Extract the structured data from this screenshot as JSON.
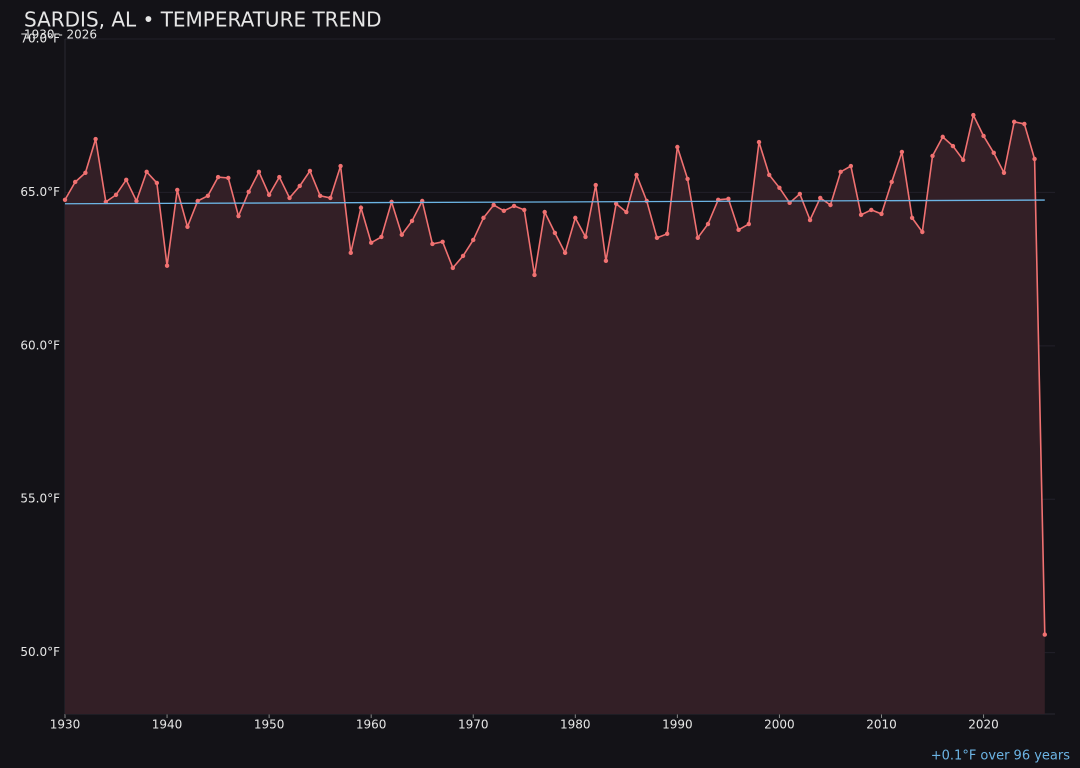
{
  "chart_data": {
    "type": "line",
    "title": "SARDIS, AL • TEMPERATURE TREND",
    "subtitle": "1930 - 2026",
    "annotation": "+0.1°F over 96 years",
    "x": [
      1930,
      1931,
      1932,
      1933,
      1934,
      1935,
      1936,
      1937,
      1938,
      1939,
      1940,
      1941,
      1942,
      1943,
      1944,
      1945,
      1946,
      1947,
      1948,
      1949,
      1950,
      1951,
      1952,
      1953,
      1954,
      1955,
      1956,
      1957,
      1958,
      1959,
      1960,
      1961,
      1962,
      1963,
      1964,
      1965,
      1966,
      1967,
      1968,
      1969,
      1970,
      1971,
      1972,
      1973,
      1974,
      1975,
      1976,
      1977,
      1978,
      1979,
      1980,
      1981,
      1982,
      1983,
      1984,
      1985,
      1986,
      1987,
      1988,
      1989,
      1990,
      1991,
      1992,
      1993,
      1994,
      1995,
      1996,
      1997,
      1998,
      1999,
      2000,
      2001,
      2002,
      2003,
      2004,
      2005,
      2006,
      2007,
      2008,
      2009,
      2010,
      2011,
      2012,
      2013,
      2014,
      2015,
      2016,
      2017,
      2018,
      2019,
      2020,
      2021,
      2022,
      2023,
      2024,
      2025,
      2026
    ],
    "series": [
      {
        "color": "#f07171",
        "fill": "#331f26",
        "values": [
          64.76,
          65.34,
          65.64,
          66.74,
          64.69,
          64.92,
          65.41,
          64.72,
          65.67,
          65.31,
          62.61,
          65.08,
          63.88,
          64.72,
          64.89,
          65.5,
          65.47,
          64.23,
          65.02,
          65.67,
          64.92,
          65.5,
          64.82,
          65.21,
          65.7,
          64.89,
          64.82,
          65.86,
          63.03,
          64.5,
          63.36,
          63.55,
          64.69,
          63.62,
          64.07,
          64.72,
          63.32,
          63.39,
          62.54,
          62.93,
          63.45,
          64.17,
          64.59,
          64.4,
          64.56,
          64.43,
          62.31,
          64.36,
          63.68,
          63.03,
          64.17,
          63.55,
          65.24,
          62.77,
          64.63,
          64.36,
          65.57,
          64.72,
          63.52,
          63.65,
          66.48,
          65.44,
          63.52,
          63.97,
          64.76,
          64.79,
          63.78,
          63.97,
          66.64,
          65.57,
          65.15,
          64.66,
          64.95,
          64.1,
          64.82,
          64.59,
          65.67,
          65.86,
          64.27,
          64.43,
          64.3,
          65.34,
          66.32,
          64.17,
          63.71,
          66.19,
          66.81,
          66.51,
          66.06,
          67.52,
          66.84,
          66.29,
          65.64,
          67.3,
          67.23,
          66.09,
          50.59
        ]
      }
    ],
    "trend": {
      "color": "#6cb4e4",
      "x": [
        1930,
        2026
      ],
      "values": [
        64.63,
        64.75
      ]
    },
    "xlim": [
      1930,
      2027
    ],
    "ylim": [
      48,
      70
    ],
    "xticks": [
      1930,
      1940,
      1950,
      1960,
      1970,
      1980,
      1990,
      2000,
      2010,
      2020
    ],
    "yticks": [
      {
        "value": 50,
        "label": "50.0°F"
      },
      {
        "value": 55,
        "label": "55.0°F"
      },
      {
        "value": 60,
        "label": "60.0°F"
      },
      {
        "value": 65,
        "label": "65.0°F"
      },
      {
        "value": 70,
        "label": "70.0°F"
      }
    ],
    "grid": true
  }
}
